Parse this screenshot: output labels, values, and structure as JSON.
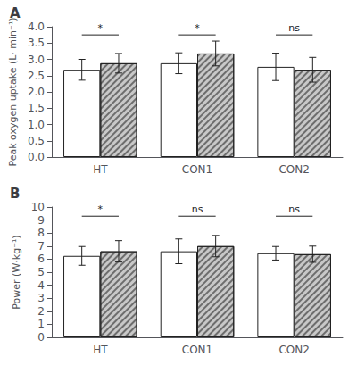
{
  "chart_data": [
    {
      "type": "bar",
      "title": "A",
      "ylabel": "Peak oxygen uptake (L· min⁻¹)",
      "categories": [
        "HT",
        "CON1",
        "CON2"
      ],
      "series": [
        {
          "color": "#ffffff",
          "values": [
            2.68,
            2.88,
            2.77
          ],
          "errors": [
            0.32,
            0.32,
            0.42
          ]
        },
        {
          "color": "#c8c8c8",
          "values": [
            2.88,
            3.18,
            2.68
          ],
          "errors": [
            0.3,
            0.38,
            0.38
          ]
        }
      ],
      "annotations": [
        {
          "text": "*",
          "category": "HT",
          "y": 3.75
        },
        {
          "text": "*",
          "category": "CON1",
          "y": 3.75
        },
        {
          "text": "ns",
          "category": "CON2",
          "y": 3.75
        }
      ],
      "ylim": [
        0,
        4.0
      ],
      "yticks": [
        {
          "value": 0.0,
          "label": "0.0"
        },
        0.5,
        {
          "value": 1.0,
          "label": "1.0"
        },
        1.5,
        {
          "value": 2.0,
          "label": "2.0"
        },
        2.5,
        {
          "value": 3.0,
          "label": "3.0"
        },
        3.5,
        {
          "value": 4.0,
          "label": "4.0"
        }
      ],
      "grid": false
    },
    {
      "type": "bar",
      "title": "B",
      "ylabel": "Power (W·kg⁻¹)",
      "categories": [
        "HT",
        "CON1",
        "CON2"
      ],
      "series": [
        {
          "color": "#ffffff",
          "values": [
            6.25,
            6.6,
            6.45
          ],
          "errors": [
            0.72,
            0.95,
            0.52
          ]
        },
        {
          "color": "#c8c8c8",
          "values": [
            6.6,
            7.0,
            6.38
          ],
          "errors": [
            0.82,
            0.82,
            0.62
          ]
        }
      ],
      "annotations": [
        {
          "text": "*",
          "category": "HT",
          "y": 9.3
        },
        {
          "text": "ns",
          "category": "CON1",
          "y": 9.3
        },
        {
          "text": "ns",
          "category": "CON2",
          "y": 9.3
        }
      ],
      "ylim": [
        0,
        10
      ],
      "yticks": [
        0,
        1,
        2,
        3,
        4,
        5,
        6,
        7,
        8,
        9,
        10
      ],
      "grid": false
    }
  ]
}
